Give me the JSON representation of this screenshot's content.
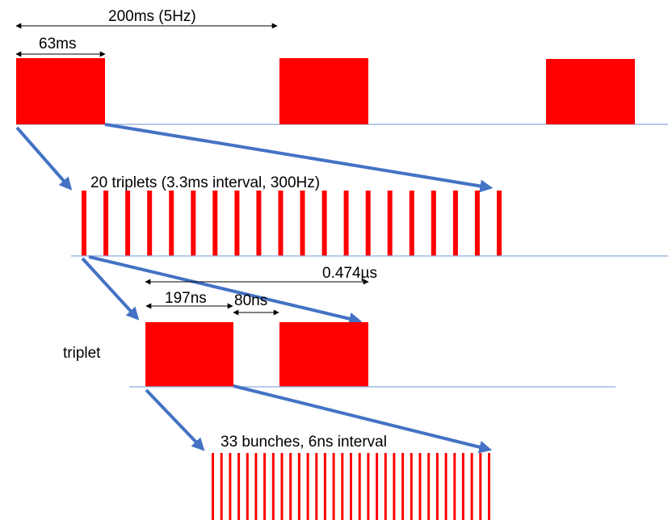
{
  "labels": {
    "period": "200ms (5Hz)",
    "macro_width": "63ms",
    "triplets": "20 triplets (3.3ms interval, 300Hz)",
    "triplet_span": "0.474µs",
    "triplet_width": "197ns",
    "triplet_gap": "80ns",
    "triplet": "triplet",
    "bunches": "33 bunches, 6ns interval"
  },
  "counts": {
    "triplet_bars": 20,
    "bunch_bars": 33
  },
  "colors": {
    "pulse": "#ff0000",
    "baseline": "#8eaadb",
    "zoom_arrow": "#4472c4",
    "dim_arrow": "#000000"
  }
}
